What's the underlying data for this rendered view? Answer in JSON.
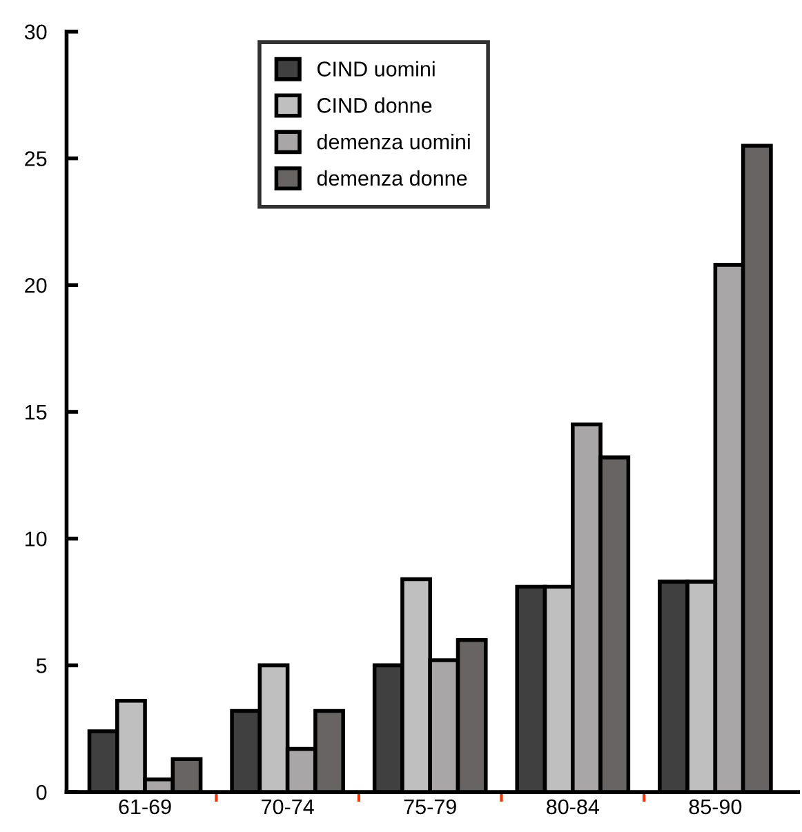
{
  "chart_data": {
    "type": "bar",
    "categories": [
      "61-69",
      "70-74",
      "75-79",
      "80-84",
      "85-90"
    ],
    "series": [
      {
        "name": "CIND uomini",
        "color": "#404040",
        "values": [
          2.4,
          3.2,
          5.0,
          8.1,
          8.3
        ]
      },
      {
        "name": "CIND donne",
        "color": "#bfbfbf",
        "values": [
          3.6,
          5.0,
          8.4,
          8.1,
          8.3
        ]
      },
      {
        "name": "demenza uomini",
        "color": "#a8a6a6",
        "values": [
          0.5,
          1.7,
          5.2,
          14.5,
          20.8
        ]
      },
      {
        "name": "demenza donne",
        "color": "#686464",
        "values": [
          1.3,
          3.2,
          6.0,
          13.2,
          25.5
        ]
      }
    ],
    "ylim": [
      0,
      30
    ],
    "yticks": [
      0,
      5,
      10,
      15,
      20,
      25,
      30
    ],
    "grid": false,
    "legend": "top"
  }
}
